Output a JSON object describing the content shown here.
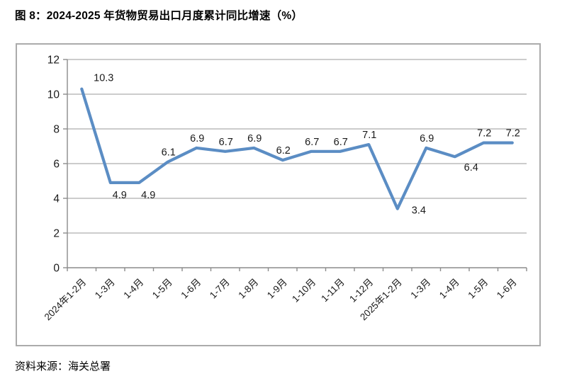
{
  "title": "图 8：2024-2025 年货物贸易出口月度累计同比增速（%）",
  "source": "资料来源：海关总署",
  "colors": {
    "line": "#5B8DC4",
    "grid": "#ADADAD",
    "axis": "#8C8C8C",
    "frame": "#ABABAB",
    "text": "#1A1A1A"
  },
  "chart_data": {
    "type": "line",
    "title": "2024-2025 年货物贸易出口月度累计同比增速（%）",
    "categories": [
      "2024年1-2月",
      "1-3月",
      "1-4月",
      "1-5月",
      "1-6月",
      "1-7月",
      "1-8月",
      "1-9月",
      "1-10月",
      "1-11月",
      "1-12月",
      "2025年1-2月",
      "1-3月",
      "1-4月",
      "1-5月",
      "1-6月"
    ],
    "values": [
      10.3,
      4.9,
      4.9,
      6.1,
      6.9,
      6.7,
      6.9,
      6.2,
      6.7,
      6.7,
      7.1,
      3.4,
      6.9,
      6.4,
      7.2,
      7.2
    ],
    "xlabel": "",
    "ylabel": "",
    "ylim": [
      0,
      12
    ],
    "ytick_step": 2,
    "grid": true,
    "legend": false,
    "data_labels": true,
    "label_positions": [
      "above-right",
      "below",
      "below",
      "above",
      "above",
      "above",
      "above",
      "above",
      "above",
      "above",
      "above",
      "right",
      "above",
      "below-right",
      "above",
      "above"
    ]
  }
}
